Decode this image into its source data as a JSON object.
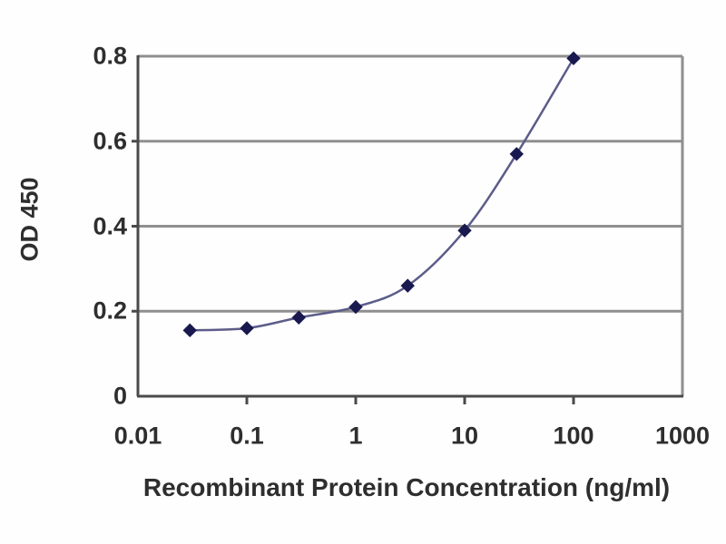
{
  "chart_data": {
    "type": "line",
    "title": "",
    "xlabel": "Recombinant Protein Concentration (ng/ml)",
    "ylabel": "OD 450",
    "x_scale": "log",
    "xlim": [
      0.01,
      1000
    ],
    "ylim": [
      0,
      0.8
    ],
    "x_ticks": [
      "0.01",
      "0.1",
      "1",
      "10",
      "100",
      "1000"
    ],
    "x_tick_values": [
      0.01,
      0.1,
      1,
      10,
      100,
      1000
    ],
    "x_minor_tick_values": [
      0.1,
      1,
      10,
      100
    ],
    "y_ticks": [
      "0",
      "0.2",
      "0.4",
      "0.6",
      "0.8"
    ],
    "y_tick_values": [
      0,
      0.2,
      0.4,
      0.6,
      0.8
    ],
    "grid": "horizontal",
    "legend": "none",
    "marker": "diamond",
    "series": [
      {
        "name": "OD 450",
        "x": [
          0.03,
          0.1,
          0.3,
          1,
          3,
          10,
          30,
          100
        ],
        "y": [
          0.155,
          0.16,
          0.185,
          0.21,
          0.26,
          0.39,
          0.57,
          0.795
        ]
      }
    ],
    "colors": {
      "line": "#5c5c8a",
      "marker": "#191950",
      "grid": "#8f8f8f",
      "axis": "#4a4a4a",
      "text": "#2e2e2e",
      "background": "#ffffff"
    }
  }
}
